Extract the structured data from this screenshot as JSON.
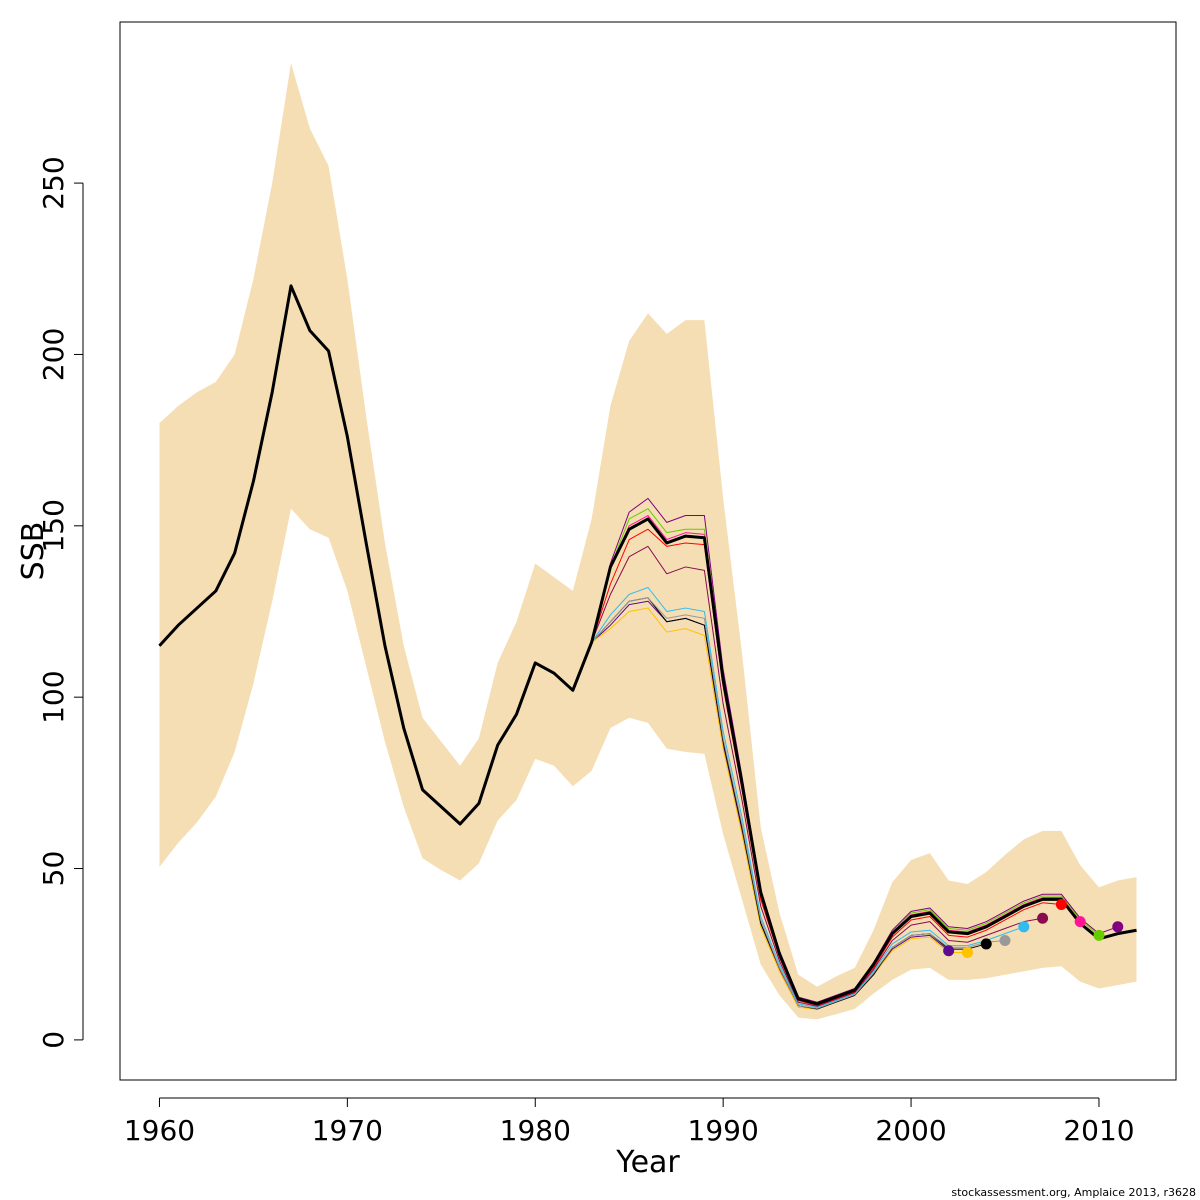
{
  "chart_data": {
    "type": "line",
    "xlabel": "Year",
    "ylabel": "SSB",
    "footer": "stockassessment.org, Amplaice  2013, r3628",
    "xlim": [
      1957.9,
      2014.1
    ],
    "ylim": [
      -11.7,
      297
    ],
    "xticks": [
      1960,
      1970,
      1980,
      1990,
      2000,
      2010
    ],
    "yticks": [
      0,
      50,
      100,
      150,
      200,
      250
    ],
    "x": [
      1960,
      1961,
      1962,
      1963,
      1964,
      1965,
      1966,
      1967,
      1968,
      1969,
      1970,
      1971,
      1972,
      1973,
      1974,
      1975,
      1976,
      1977,
      1978,
      1979,
      1980,
      1981,
      1982,
      1983,
      1984,
      1985,
      1986,
      1987,
      1988,
      1989,
      1990,
      1991,
      1992,
      1993,
      1994,
      1995,
      1996,
      1997,
      1998,
      1999,
      2000,
      2001,
      2002,
      2003,
      2004,
      2005,
      2006,
      2007,
      2008,
      2009,
      2010,
      2011,
      2012
    ],
    "band": {
      "color": "#f5deb3",
      "upper": [
        180,
        185,
        189,
        192,
        200,
        222,
        250,
        285,
        266,
        255,
        222,
        182,
        145,
        115,
        94,
        87,
        80,
        88,
        110,
        122,
        139,
        135,
        131,
        152,
        185,
        204,
        212,
        206,
        210,
        210,
        158,
        113,
        62,
        37,
        19,
        15.5,
        18.5,
        21,
        32,
        46,
        52.5,
        54.5,
        46.5,
        45.5,
        49,
        54,
        58.5,
        61,
        61,
        51,
        44.5,
        46.5,
        47.5
      ],
      "lower": [
        50.5,
        57.5,
        63.5,
        71,
        84,
        104,
        128,
        155,
        149,
        146.5,
        131,
        109,
        87,
        68,
        53,
        49.5,
        46.5,
        51.5,
        64,
        70,
        82,
        80,
        74,
        78.5,
        91,
        94,
        92.5,
        85,
        84,
        83.5,
        60,
        41,
        22,
        13,
        6.5,
        6,
        7.5,
        9,
        13.5,
        17.5,
        20.5,
        21,
        17.5,
        17.5,
        18,
        19,
        20,
        21,
        21.5,
        17,
        15,
        16,
        17
      ]
    },
    "series": [
      {
        "color": "#5b0a91",
        "marker_end": true,
        "values": [
          115,
          121,
          126,
          131,
          142,
          163,
          189,
          220,
          207,
          201,
          176,
          145,
          115,
          91,
          73,
          68,
          63,
          69,
          86,
          95,
          110,
          107,
          102,
          116,
          121,
          127,
          128,
          122,
          123,
          121,
          86,
          61,
          34,
          20.5,
          10,
          9,
          11,
          13,
          19,
          26.5,
          30,
          30.5,
          26,
          null,
          null,
          null,
          null,
          null,
          null,
          null,
          null,
          null,
          null
        ]
      },
      {
        "color": "#ffc200",
        "marker_end": true,
        "values": [
          115,
          121,
          126,
          131,
          142,
          163,
          189,
          220,
          207,
          201,
          176,
          145,
          115,
          91,
          73,
          68,
          63,
          69,
          86,
          95,
          110,
          107,
          102,
          116,
          120,
          125,
          126,
          119,
          120,
          118,
          85,
          60,
          33,
          20,
          9.5,
          9,
          11,
          13,
          19,
          26,
          29.5,
          30,
          25.5,
          25.5,
          null,
          null,
          null,
          null,
          null,
          null,
          null,
          null,
          null
        ]
      },
      {
        "color": "#000000",
        "marker_end": true,
        "values": [
          115,
          121,
          126,
          131,
          142,
          163,
          189,
          220,
          207,
          201,
          176,
          145,
          115,
          91,
          73,
          68,
          63,
          69,
          86,
          95,
          110,
          107,
          102,
          116,
          122,
          128,
          129,
          122,
          123,
          121,
          87,
          62,
          34,
          21,
          10,
          9,
          11,
          13,
          19,
          27,
          30.5,
          31,
          26.5,
          26.5,
          28,
          null,
          null,
          null,
          null,
          null,
          null,
          null,
          null
        ]
      },
      {
        "color": "#999999",
        "marker_end": true,
        "values": [
          115,
          121,
          126,
          131,
          142,
          163,
          189,
          220,
          207,
          201,
          176,
          145,
          115,
          91,
          73,
          68,
          63,
          69,
          86,
          95,
          110,
          107,
          102,
          116,
          122,
          128,
          129,
          123,
          124,
          123,
          88,
          63,
          35,
          21,
          10,
          9.2,
          11.2,
          13.2,
          19.5,
          27,
          30.5,
          31,
          27,
          27,
          28.5,
          29,
          null,
          null,
          null,
          null,
          null,
          null,
          null
        ]
      },
      {
        "color": "#33bbee",
        "marker_end": true,
        "values": [
          115,
          121,
          126,
          131,
          142,
          163,
          189,
          220,
          207,
          201,
          176,
          145,
          115,
          91,
          73,
          68,
          63,
          69,
          86,
          95,
          110,
          107,
          102,
          116,
          124,
          130,
          132,
          125,
          126,
          125,
          90,
          65,
          36,
          22,
          10.5,
          9.5,
          11.5,
          13.5,
          20,
          28,
          31.5,
          32,
          27.5,
          27.5,
          29,
          31,
          33,
          null,
          null,
          null,
          null,
          null,
          null
        ]
      },
      {
        "color": "#8b0a50",
        "marker_end": true,
        "values": [
          115,
          121,
          126,
          131,
          142,
          163,
          189,
          220,
          207,
          201,
          176,
          145,
          115,
          91,
          73,
          68,
          63,
          69,
          86,
          95,
          110,
          107,
          102,
          116,
          130,
          141,
          144,
          136,
          138,
          137,
          98,
          70,
          39,
          23,
          11,
          9.8,
          11.8,
          13.8,
          20.5,
          29,
          33.5,
          34.5,
          29,
          28.5,
          30.5,
          32.5,
          34.5,
          35.5,
          null,
          null,
          null,
          null,
          null
        ]
      },
      {
        "color": "#ff0000",
        "marker_end": true,
        "values": [
          115,
          121,
          126,
          131,
          142,
          163,
          189,
          220,
          207,
          201,
          176,
          145,
          115,
          91,
          73,
          68,
          63,
          69,
          86,
          95,
          110,
          107,
          102,
          116,
          133,
          146,
          149,
          144,
          145,
          144.5,
          103,
          73,
          41,
          24,
          11.5,
          10,
          12,
          14,
          21,
          30,
          35,
          36,
          30.5,
          30,
          32,
          35,
          38,
          40,
          39.5,
          null,
          null,
          null,
          null
        ]
      },
      {
        "color": "#ff1493",
        "marker_end": true,
        "values": [
          115,
          121,
          126,
          131,
          142,
          163,
          189,
          220,
          207,
          201,
          176,
          145,
          115,
          91,
          73,
          68,
          63,
          69,
          86,
          95,
          110,
          107,
          102,
          116,
          138,
          150,
          153,
          146,
          148,
          147.5,
          105.5,
          75.5,
          43,
          25,
          12,
          10.5,
          12.5,
          14.5,
          22,
          31,
          36.5,
          37.5,
          32,
          31.5,
          33.5,
          36.5,
          39.5,
          41.5,
          41.5,
          34.5,
          null,
          null,
          null
        ]
      },
      {
        "color": "#66cc00",
        "marker_end": true,
        "values": [
          115,
          121,
          126,
          131,
          142,
          163,
          189,
          220,
          207,
          201,
          176,
          145,
          115,
          91,
          73,
          68,
          63,
          69,
          86,
          95,
          110,
          107,
          102,
          116,
          138,
          152,
          155,
          148,
          149,
          149,
          106,
          76,
          43.5,
          25.5,
          12,
          10.8,
          12.8,
          14.8,
          22,
          31.5,
          37,
          38,
          32.5,
          32,
          34,
          37,
          40,
          42,
          42,
          35,
          30.5,
          null,
          null
        ]
      },
      {
        "color": "#800080",
        "marker_end": true,
        "values": [
          115,
          121,
          126,
          131,
          142,
          163,
          189,
          220,
          207,
          201,
          176,
          145,
          115,
          91,
          73,
          68,
          63,
          69,
          86,
          95,
          110,
          107,
          102,
          116,
          139,
          154,
          158,
          151,
          153,
          153,
          108,
          77,
          44,
          26,
          12.5,
          11,
          13,
          15,
          22.5,
          32,
          37.5,
          38.5,
          33,
          32.5,
          34.5,
          37.5,
          40.5,
          42.5,
          42.5,
          35.5,
          31,
          33,
          null
        ]
      },
      {
        "color": "#000000",
        "linewidth": 3,
        "values": [
          115,
          121,
          126,
          131,
          142,
          163,
          189,
          220,
          207,
          201,
          176,
          145,
          115,
          91,
          73,
          68,
          63,
          69,
          86,
          95,
          110,
          107,
          102,
          116,
          138,
          149,
          152,
          145,
          147,
          146.5,
          105,
          75,
          43,
          25,
          12,
          10.5,
          12.5,
          14.5,
          22,
          31,
          36,
          37,
          31.5,
          31,
          33,
          36,
          39,
          41,
          41,
          34,
          29.5,
          31,
          32
        ]
      }
    ]
  }
}
